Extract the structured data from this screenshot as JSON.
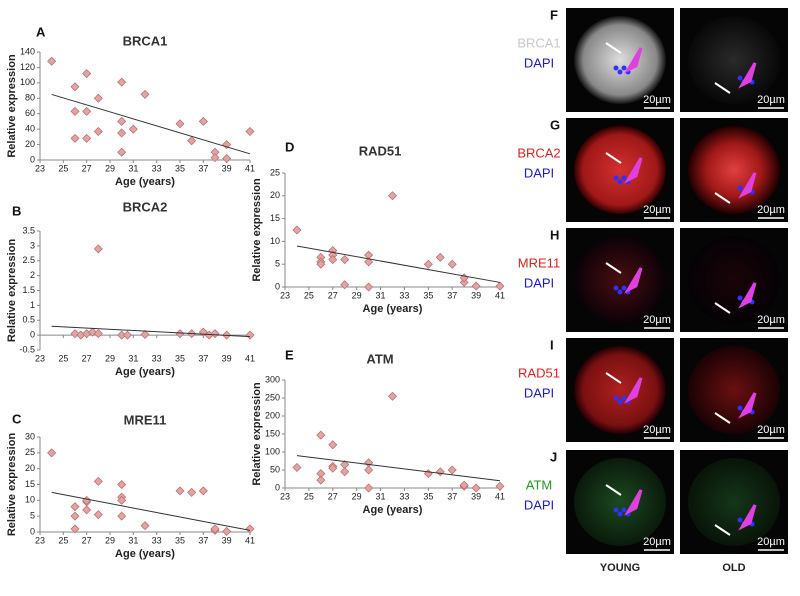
{
  "chart_data": [
    {
      "type": "scatter",
      "panel": "A",
      "title": "BRCA1",
      "xlabel": "Age (years)",
      "ylabel": "Relative expression",
      "color": "#e3a3a3",
      "x": [
        24,
        26,
        26,
        26,
        27,
        27,
        27,
        28,
        28,
        30,
        30,
        30,
        30,
        31,
        32,
        35,
        36,
        37,
        38,
        38,
        39,
        39,
        41
      ],
      "y": [
        128,
        95,
        63,
        28,
        112,
        63,
        28,
        80,
        37,
        101,
        50,
        35,
        10,
        40,
        85,
        47,
        25,
        50,
        10,
        3,
        20,
        2,
        37
      ],
      "trend": {
        "x": [
          24,
          41
        ],
        "y": [
          85,
          8
        ]
      },
      "xlim": [
        23,
        41
      ],
      "ylim": [
        0,
        140
      ],
      "xticks": [
        23,
        25,
        27,
        29,
        31,
        33,
        35,
        37,
        39,
        41
      ],
      "yticks": [
        0,
        20,
        40,
        60,
        80,
        100,
        120,
        140
      ]
    },
    {
      "type": "scatter",
      "panel": "B",
      "title": "BRCA2",
      "xlabel": "Age (years)",
      "ylabel": "Relative expression",
      "color": "#e3a3a3",
      "x": [
        26,
        26.5,
        27,
        27.5,
        28,
        28,
        30,
        30.5,
        32,
        35,
        36,
        37,
        37.5,
        38,
        39,
        41
      ],
      "y": [
        0.05,
        0,
        0.05,
        0.1,
        2.9,
        0.05,
        0,
        0,
        0.02,
        0.05,
        0.05,
        0.1,
        0,
        0.05,
        0,
        0
      ],
      "trend": {
        "x": [
          24,
          41
        ],
        "y": [
          0.3,
          -0.05
        ]
      },
      "xlim": [
        23,
        41
      ],
      "ylim": [
        -0.5,
        3.5
      ],
      "xticks": [
        23,
        25,
        27,
        29,
        31,
        33,
        35,
        37,
        39,
        41
      ],
      "yticks": [
        -0.5,
        0,
        0.5,
        1,
        1.5,
        2,
        2.5,
        3,
        3.5
      ]
    },
    {
      "type": "scatter",
      "panel": "C",
      "title": "MRE11",
      "xlabel": "Age (years)",
      "ylabel": "Relative expression",
      "color": "#e3a3a3",
      "x": [
        24,
        26,
        26,
        26,
        27,
        27,
        27,
        28,
        28,
        30,
        30,
        30,
        30,
        32,
        35,
        36,
        37,
        38,
        38,
        39,
        41
      ],
      "y": [
        25,
        8,
        5,
        1,
        9.5,
        7,
        10,
        5.5,
        16,
        15,
        11,
        10,
        5,
        2,
        13,
        12.5,
        13,
        0.5,
        1,
        0.2,
        1
      ],
      "trend": {
        "x": [
          24,
          41
        ],
        "y": [
          12.5,
          0.5
        ]
      },
      "xlim": [
        23,
        41
      ],
      "ylim": [
        0,
        30
      ],
      "xticks": [
        23,
        25,
        27,
        29,
        31,
        33,
        35,
        37,
        39,
        41
      ],
      "yticks": [
        0,
        5,
        10,
        15,
        20,
        25,
        30
      ]
    },
    {
      "type": "scatter",
      "panel": "D",
      "title": "RAD51",
      "xlabel": "Age (years)",
      "ylabel": "Relative expression",
      "color": "#e3a3a3",
      "x": [
        24,
        26,
        26,
        26,
        27,
        27,
        27,
        28,
        28,
        30,
        30,
        30,
        32,
        35,
        36,
        37,
        38,
        38,
        39,
        41
      ],
      "y": [
        12.5,
        6.5,
        5.5,
        5,
        8,
        7,
        6,
        6,
        0.5,
        7,
        5.5,
        0,
        20,
        5,
        6.5,
        5,
        1,
        2,
        0.2,
        0.2
      ],
      "trend": {
        "x": [
          24,
          41
        ],
        "y": [
          9,
          1
        ]
      },
      "xlim": [
        23,
        41
      ],
      "ylim": [
        0,
        25
      ],
      "xticks": [
        23,
        25,
        27,
        29,
        31,
        33,
        35,
        37,
        39,
        41
      ],
      "yticks": [
        0,
        5,
        10,
        15,
        20,
        25
      ]
    },
    {
      "type": "scatter",
      "panel": "E",
      "title": "ATM",
      "xlabel": "Age (years)",
      "ylabel": "Relative expression",
      "color": "#e3a3a3",
      "x": [
        24,
        26,
        26,
        26,
        27,
        27,
        27,
        28,
        28,
        30,
        30,
        30,
        32,
        35,
        36,
        37,
        38,
        38,
        39,
        41
      ],
      "y": [
        57,
        147,
        40,
        22,
        120,
        60,
        55,
        65,
        45,
        70,
        50,
        0,
        255,
        40,
        45,
        50,
        5,
        8,
        0,
        5
      ],
      "trend": {
        "x": [
          24,
          41
        ],
        "y": [
          90,
          20
        ]
      },
      "xlim": [
        23,
        41
      ],
      "ylim": [
        0,
        300
      ],
      "xticks": [
        23,
        25,
        27,
        29,
        31,
        33,
        35,
        37,
        39,
        41
      ],
      "yticks": [
        0,
        50,
        100,
        150,
        200,
        250,
        300
      ]
    }
  ],
  "micrographs": {
    "columns": [
      "YOUNG",
      "OLD"
    ],
    "scale_bar": "20µm",
    "rows": [
      {
        "panel": "F",
        "stains": [
          {
            "text": "BRCA1",
            "color": "#c8c8c8"
          },
          {
            "text": "DAPI",
            "color": "#1a1ad0"
          }
        ]
      },
      {
        "panel": "G",
        "stains": [
          {
            "text": "BRCA2",
            "color": "#e02020"
          },
          {
            "text": "DAPI",
            "color": "#1a1ad0"
          }
        ]
      },
      {
        "panel": "H",
        "stains": [
          {
            "text": "MRE11",
            "color": "#e02020"
          },
          {
            "text": "DAPI",
            "color": "#1a1ad0"
          }
        ]
      },
      {
        "panel": "I",
        "stains": [
          {
            "text": "RAD51",
            "color": "#e02020"
          },
          {
            "text": "DAPI",
            "color": "#1a1ad0"
          }
        ]
      },
      {
        "panel": "J",
        "stains": [
          {
            "text": "ATM",
            "color": "#1f9a1f"
          },
          {
            "text": "DAPI",
            "color": "#1a1ad0"
          }
        ]
      }
    ]
  }
}
